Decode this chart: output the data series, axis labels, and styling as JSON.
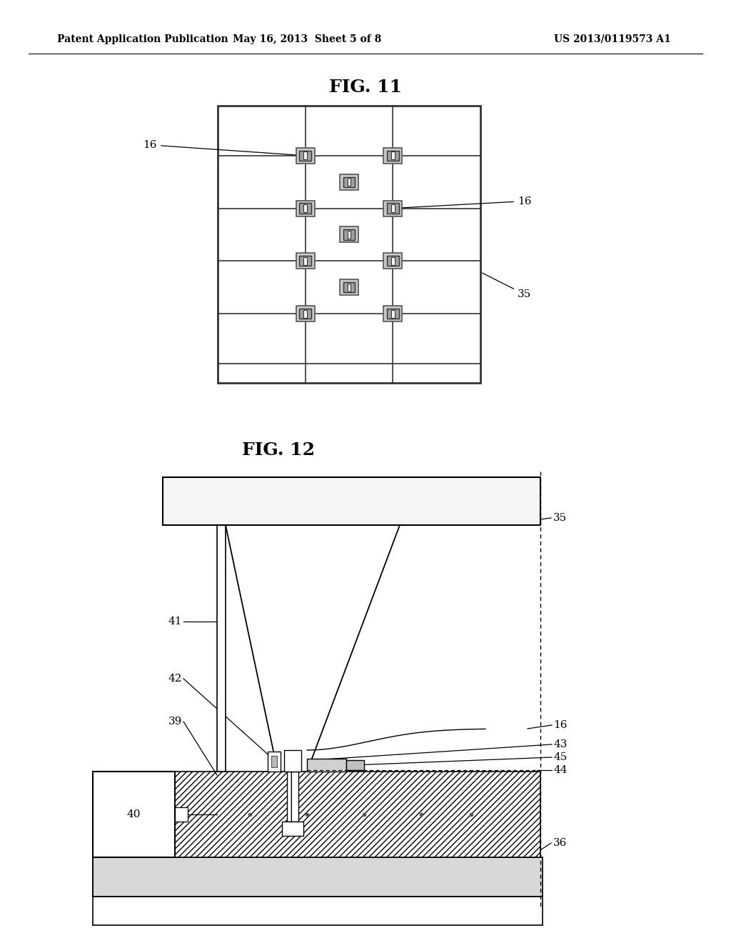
{
  "bg_color": "#ffffff",
  "header_left": "Patent Application Publication",
  "header_mid": "May 16, 2013  Sheet 5 of 8",
  "header_right": "US 2013/0119573 A1",
  "fig11_title": "FIG. 11",
  "fig12_title": "FIG. 12"
}
